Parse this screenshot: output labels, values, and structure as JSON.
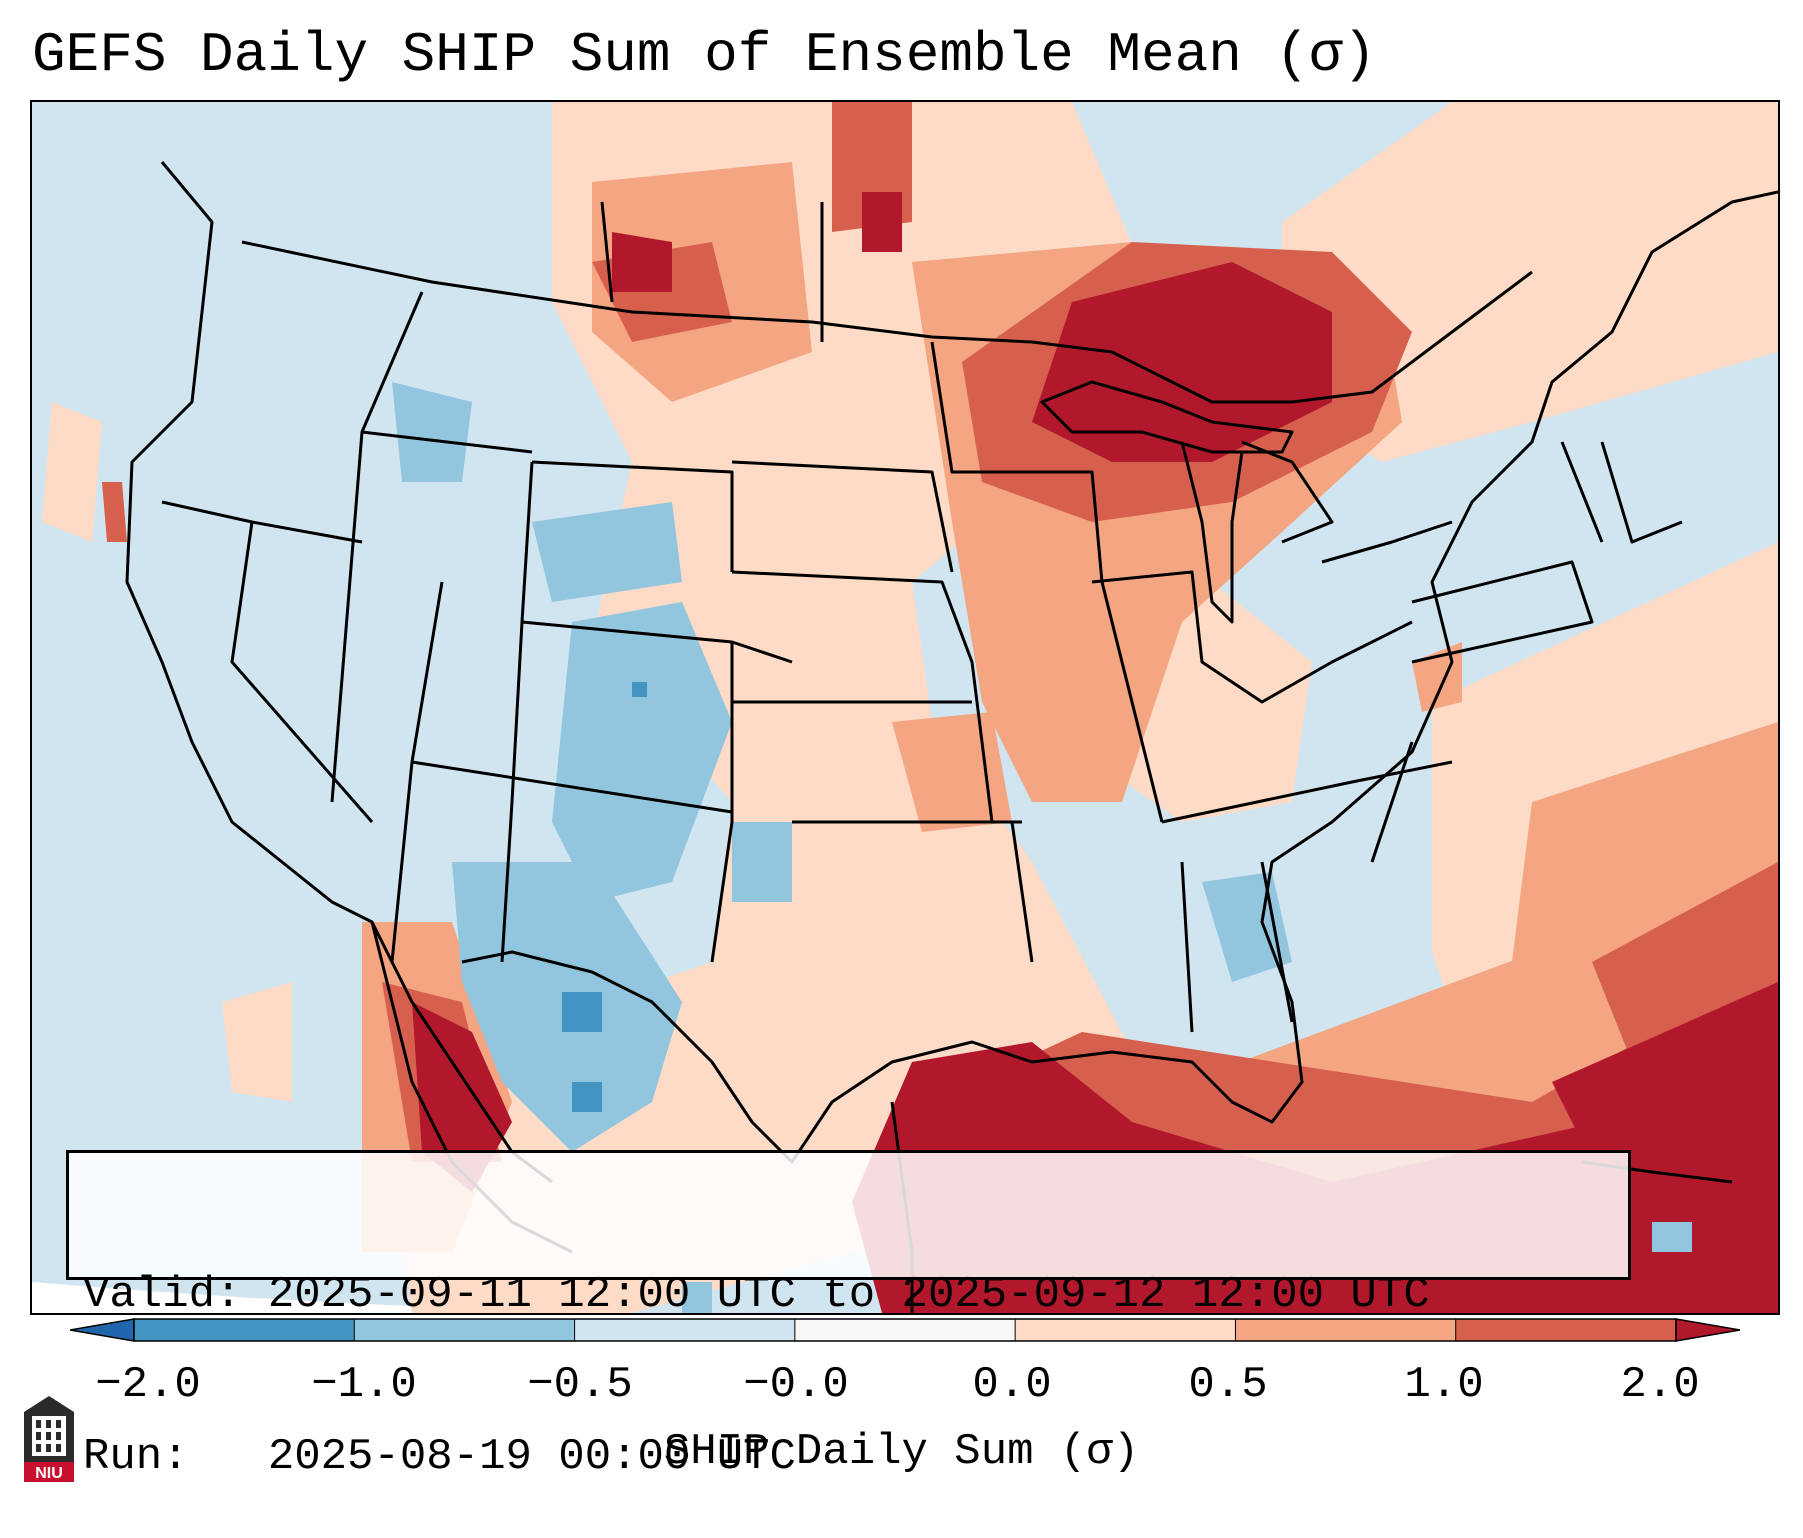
{
  "title": "GEFS Daily SHIP Sum of Ensemble Mean (σ)",
  "info": {
    "valid_label": "Valid:",
    "valid_value": "2025-09-11 12:00 UTC to 2025-09-12 12:00 UTC",
    "run_label": "Run:",
    "run_value": "2025-08-19 00:00 UTC"
  },
  "colorbar": {
    "label": "SHIP Daily Sum (σ)",
    "ticks": [
      "−2.0",
      "−1.0",
      "−0.5",
      "−0.0",
      "0.0",
      "0.5",
      "1.0",
      "2.0"
    ],
    "colors": [
      "#2166ac",
      "#4393c3",
      "#92c5de",
      "#d1e5f0",
      "#f7f7f7",
      "#fddbc7",
      "#f4a582",
      "#d6604d",
      "#b2182b"
    ]
  },
  "logo": {
    "text": "NIU",
    "icon": "niu-building-icon"
  },
  "map": {
    "region": "Contiguous United States"
  }
}
